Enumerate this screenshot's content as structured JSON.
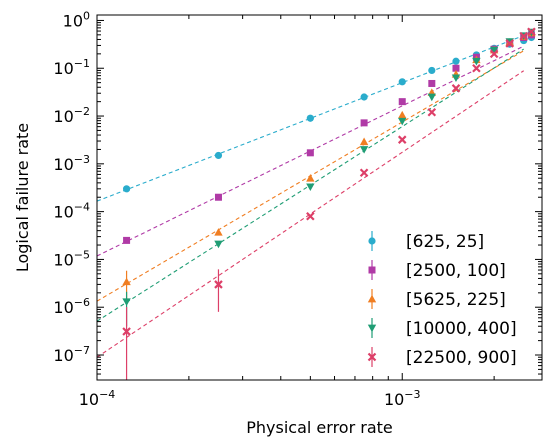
{
  "chart_data": {
    "type": "scatter",
    "xlabel": "Physical error rate",
    "ylabel": "Logical failure rate",
    "xscale": "log",
    "yscale": "log",
    "xlim": [
      0.0001,
      0.00287
    ],
    "ylim": [
      3e-08,
      1.3
    ],
    "x_ticks": [
      {
        "value": 0.0001,
        "base": "10",
        "exp": "−4"
      },
      {
        "value": 0.001,
        "base": "10",
        "exp": "−3"
      }
    ],
    "y_ticks": [
      {
        "value": 1,
        "base": "10",
        "exp": "0"
      },
      {
        "value": 0.1,
        "base": "10",
        "exp": "−1"
      },
      {
        "value": 0.01,
        "base": "10",
        "exp": "−2"
      },
      {
        "value": 0.001,
        "base": "10",
        "exp": "−3"
      },
      {
        "value": 0.0001,
        "base": "10",
        "exp": "−4"
      },
      {
        "value": 1e-05,
        "base": "10",
        "exp": "−5"
      },
      {
        "value": 1e-06,
        "base": "10",
        "exp": "−6"
      },
      {
        "value": 1e-07,
        "base": "10",
        "exp": "−7"
      }
    ],
    "legend_position": "lower-right",
    "series": [
      {
        "name": "[625, 25]",
        "color": "#2aaccc",
        "marker": "circle",
        "x": [
          0.000125,
          0.00025,
          0.0005,
          0.00075,
          0.001,
          0.00125,
          0.0015,
          0.00175,
          0.002,
          0.00225,
          0.0025,
          0.00265
        ],
        "y": [
          0.0003,
          0.0015,
          0.009,
          0.025,
          0.052,
          0.09,
          0.14,
          0.19,
          0.26,
          0.32,
          0.38,
          0.44
        ],
        "fit_range": [
          0.0001,
          0.0027
        ]
      },
      {
        "name": "[2500, 100]",
        "color": "#b03aa6",
        "marker": "square",
        "x": [
          0.000125,
          0.00025,
          0.0005,
          0.00075,
          0.001,
          0.00125,
          0.0015,
          0.00175,
          0.002,
          0.00225,
          0.0025,
          0.00265
        ],
        "y": [
          2.5e-05,
          0.0002,
          0.0017,
          0.0072,
          0.02,
          0.048,
          0.1,
          0.17,
          0.25,
          0.34,
          0.44,
          0.5
        ],
        "fit_range": [
          0.0001,
          0.0025
        ]
      },
      {
        "name": "[5625, 225]",
        "color": "#f07e22",
        "marker": "triangle-up",
        "x": [
          0.000125,
          0.00025,
          0.0005,
          0.00075,
          0.001,
          0.00125,
          0.0015,
          0.00175,
          0.002,
          0.00225,
          0.0025,
          0.00265
        ],
        "y": [
          3.4e-06,
          3.7e-05,
          0.0005,
          0.0029,
          0.0105,
          0.031,
          0.075,
          0.15,
          0.24,
          0.35,
          0.46,
          0.55
        ],
        "yerr_low": [
          2.2e-06,
          0,
          0,
          0,
          0,
          0,
          0,
          0,
          0,
          0,
          0,
          0
        ],
        "yerr_high": [
          2.4e-06,
          0,
          0,
          0,
          0,
          0,
          0,
          0,
          0,
          0,
          0,
          0
        ],
        "fit_range": [
          0.0001,
          0.0025
        ]
      },
      {
        "name": "[10000, 400]",
        "color": "#1f9d74",
        "marker": "triangle-down",
        "x": [
          0.000125,
          0.00025,
          0.0005,
          0.00075,
          0.001,
          0.00125,
          0.0015,
          0.00175,
          0.002,
          0.00225,
          0.0025,
          0.00265
        ],
        "y": [
          1.3e-06,
          2.1e-05,
          0.00033,
          0.002,
          0.0078,
          0.025,
          0.063,
          0.14,
          0.24,
          0.36,
          0.48,
          0.57
        ],
        "yerr_low": [
          9e-07,
          0,
          0,
          0,
          0,
          0,
          0,
          0,
          0,
          0,
          0,
          0
        ],
        "yerr_high": [
          8e-07,
          0,
          0,
          0,
          0,
          0,
          0,
          0,
          0,
          0,
          0,
          0
        ],
        "fit_range": [
          0.0001,
          0.0025
        ]
      },
      {
        "name": "[22500, 900]",
        "color": "#dd3f68",
        "marker": "x",
        "x": [
          0.000125,
          0.00025,
          0.0005,
          0.00075,
          0.001,
          0.00125,
          0.0015,
          0.00175,
          0.002,
          0.00225,
          0.0025,
          0.00265
        ],
        "y": [
          3.1e-07,
          3e-06,
          8e-05,
          0.00065,
          0.0032,
          0.012,
          0.038,
          0.1,
          0.2,
          0.33,
          0.47,
          0.58
        ],
        "yerr_low": [
          2.8e-07,
          2.2e-06,
          0,
          0,
          0,
          0,
          0,
          0,
          0,
          0,
          0,
          0
        ],
        "yerr_high": [
          7e-07,
          3.2e-06,
          0,
          0,
          0,
          0,
          0,
          0,
          0,
          0,
          0,
          0
        ],
        "fit_range": [
          0.0001,
          0.0025
        ]
      }
    ]
  }
}
